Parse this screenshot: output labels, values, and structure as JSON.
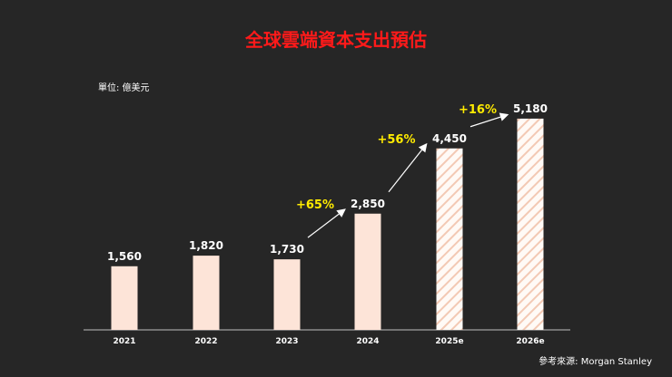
{
  "title": "全球雲端資本支出預估",
  "unit_label": "單位: 億美元",
  "source_label": "參考來源: Morgan Stanley",
  "colors": {
    "background": "#262626",
    "title": "#ff1a1a",
    "bar": "#fde4d8",
    "bar_stripe": "#f3c9b4",
    "growth_label": "#ffeb00",
    "text": "#ffffff"
  },
  "chart_data": {
    "type": "bar",
    "categories": [
      "2021",
      "2022",
      "2023",
      "2024",
      "2025e",
      "2026e"
    ],
    "values": [
      1560,
      1820,
      1730,
      2850,
      4450,
      5180
    ],
    "value_labels": [
      "1,560",
      "1,820",
      "1,730",
      "2,850",
      "4,450",
      "5,180"
    ],
    "estimated": [
      false,
      false,
      false,
      false,
      true,
      true
    ],
    "ylim": [
      0,
      6000
    ],
    "grid": false,
    "legend": "none",
    "annotations": [
      {
        "text": "+65%",
        "from_category": "2023",
        "to_category": "2024"
      },
      {
        "text": "+56%",
        "from_category": "2024",
        "to_category": "2025e"
      },
      {
        "text": "+16%",
        "from_category": "2025e",
        "to_category": "2026e"
      }
    ]
  }
}
